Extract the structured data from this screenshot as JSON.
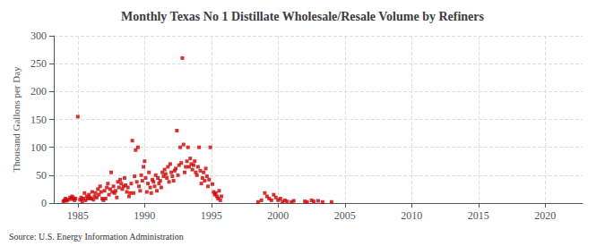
{
  "chart_data": {
    "type": "scatter",
    "title": "Monthly Texas No 1 Distillate Wholesale/Resale Volume by Refiners",
    "ylabel": "Thousand Gallons per Day",
    "source": "Source: U.S. Energy Information Administration",
    "color": "#cc0000",
    "marker": "square",
    "grid": true,
    "xlim": [
      1983.2,
      2022.8
    ],
    "ylim": [
      0,
      300
    ],
    "xticks": [
      1985,
      1990,
      1995,
      2000,
      2005,
      2010,
      2015,
      2020
    ],
    "yticks": [
      0,
      50,
      100,
      150,
      200,
      250,
      300
    ],
    "x": [
      1983.92,
      1984.0,
      1984.08,
      1984.17,
      1984.25,
      1984.42,
      1984.5,
      1984.58,
      1984.67,
      1984.75,
      1984.83,
      1985.0,
      1985.17,
      1985.25,
      1985.33,
      1985.42,
      1985.5,
      1985.58,
      1985.67,
      1985.75,
      1985.83,
      1985.92,
      1986.0,
      1986.08,
      1986.17,
      1986.25,
      1986.33,
      1986.42,
      1986.5,
      1986.58,
      1986.67,
      1986.75,
      1986.83,
      1986.92,
      1987.0,
      1987.08,
      1987.17,
      1987.25,
      1987.33,
      1987.42,
      1987.5,
      1987.58,
      1987.67,
      1987.75,
      1987.83,
      1987.92,
      1988.0,
      1988.08,
      1988.17,
      1988.25,
      1988.33,
      1988.42,
      1988.5,
      1988.58,
      1988.67,
      1988.75,
      1988.83,
      1988.92,
      1989.0,
      1989.08,
      1989.17,
      1989.25,
      1989.33,
      1989.42,
      1989.5,
      1989.58,
      1989.67,
      1989.75,
      1989.83,
      1989.92,
      1990.0,
      1990.08,
      1990.17,
      1990.25,
      1990.33,
      1990.42,
      1990.5,
      1990.58,
      1990.67,
      1990.75,
      1990.83,
      1990.92,
      1991.0,
      1991.08,
      1991.17,
      1991.25,
      1991.33,
      1991.42,
      1991.5,
      1991.58,
      1991.67,
      1991.75,
      1991.83,
      1991.92,
      1992.0,
      1992.08,
      1992.17,
      1992.25,
      1992.33,
      1992.42,
      1992.5,
      1992.58,
      1992.67,
      1992.75,
      1992.83,
      1992.92,
      1993.0,
      1993.08,
      1993.17,
      1993.25,
      1993.33,
      1993.42,
      1993.5,
      1993.58,
      1993.67,
      1993.75,
      1993.83,
      1993.92,
      1994.0,
      1994.08,
      1994.17,
      1994.25,
      1994.33,
      1994.42,
      1994.5,
      1994.58,
      1994.67,
      1994.75,
      1994.83,
      1994.92,
      1995.08,
      1995.17,
      1995.25,
      1995.33,
      1995.42,
      1995.5,
      1995.58,
      1995.67,
      1995.75,
      1998.5,
      1998.75,
      1999.0,
      1999.17,
      1999.33,
      1999.5,
      1999.67,
      1999.83,
      2000.0,
      2000.17,
      2000.33,
      2000.5,
      2000.67,
      2001.0,
      2001.17,
      2002.0,
      2002.17,
      2002.5,
      2002.67,
      2003.0,
      2003.33,
      2004.0
    ],
    "values": [
      3,
      5,
      8,
      4,
      6,
      10,
      7,
      12,
      9,
      5,
      8,
      155,
      6,
      10,
      3,
      8,
      18,
      5,
      12,
      8,
      15,
      10,
      8,
      20,
      6,
      12,
      18,
      10,
      25,
      15,
      30,
      20,
      8,
      5,
      22,
      8,
      28,
      35,
      15,
      25,
      55,
      20,
      30,
      18,
      22,
      10,
      38,
      28,
      42,
      35,
      25,
      30,
      45,
      32,
      20,
      28,
      12,
      18,
      35,
      112,
      18,
      48,
      95,
      38,
      100,
      30,
      22,
      50,
      40,
      65,
      75,
      45,
      20,
      35,
      55,
      28,
      18,
      42,
      38,
      30,
      50,
      22,
      45,
      35,
      40,
      28,
      55,
      48,
      60,
      52,
      45,
      65,
      38,
      70,
      55,
      48,
      40,
      58,
      62,
      130,
      50,
      68,
      100,
      72,
      260,
      105,
      55,
      65,
      75,
      100,
      65,
      80,
      70,
      60,
      68,
      75,
      55,
      50,
      65,
      100,
      58,
      35,
      45,
      55,
      40,
      62,
      48,
      30,
      42,
      100,
      34,
      20,
      15,
      18,
      12,
      8,
      22,
      5,
      12,
      2,
      5,
      18,
      12,
      8,
      5,
      15,
      10,
      5,
      8,
      2,
      5,
      3,
      2,
      4,
      3,
      2,
      5,
      3,
      4,
      2,
      2
    ]
  }
}
